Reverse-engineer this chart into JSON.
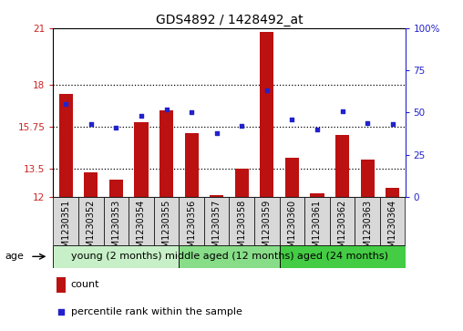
{
  "title": "GDS4892 / 1428492_at",
  "samples": [
    "GSM1230351",
    "GSM1230352",
    "GSM1230353",
    "GSM1230354",
    "GSM1230355",
    "GSM1230356",
    "GSM1230357",
    "GSM1230358",
    "GSM1230359",
    "GSM1230360",
    "GSM1230361",
    "GSM1230362",
    "GSM1230363",
    "GSM1230364"
  ],
  "counts": [
    17.5,
    13.3,
    12.9,
    16.0,
    16.6,
    15.4,
    12.1,
    13.5,
    20.8,
    14.1,
    12.2,
    15.3,
    14.0,
    12.5
  ],
  "percentiles": [
    55,
    43,
    41,
    48,
    52,
    50,
    38,
    42,
    63,
    46,
    40,
    51,
    44,
    43
  ],
  "ymin": 12,
  "ymax": 21,
  "yticks": [
    12,
    13.5,
    15.75,
    18,
    21
  ],
  "ytick_labels": [
    "12",
    "13.5",
    "15.75",
    "18",
    "21"
  ],
  "right_yticks": [
    0,
    25,
    50,
    75,
    100
  ],
  "right_ytick_labels": [
    "0",
    "25",
    "50",
    "75",
    "100%"
  ],
  "bar_color": "#bb1111",
  "dot_color": "#2222cc",
  "groups": [
    {
      "label": "young (2 months)",
      "start": 0,
      "end": 5,
      "color": "#c8f0c8"
    },
    {
      "label": "middle aged (12 months)",
      "start": 5,
      "end": 9,
      "color": "#88dd88"
    },
    {
      "label": "aged (24 months)",
      "start": 9,
      "end": 14,
      "color": "#44cc44"
    }
  ],
  "legend_count_label": "count",
  "legend_pct_label": "percentile rank within the sample",
  "age_label": "age",
  "dotted_lines": [
    13.5,
    15.75,
    18
  ],
  "title_fontsize": 10,
  "tick_label_fontsize": 7,
  "group_fontsize": 8
}
